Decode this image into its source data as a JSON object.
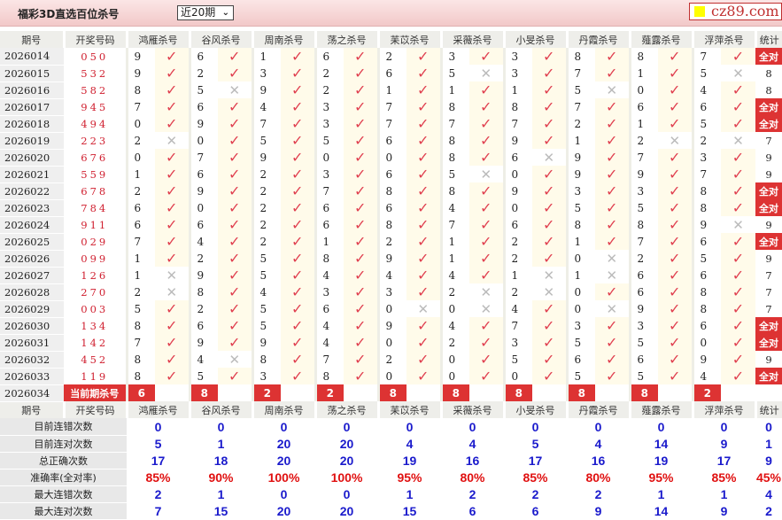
{
  "header": {
    "title": "福彩3D直选百位杀号",
    "period_select": "近20期",
    "logo": "cz89.com"
  },
  "columns": [
    "期号",
    "开奖号码",
    "鸿雁杀号",
    "谷风杀号",
    "周南杀号",
    "荡之杀号",
    "苿苡杀号",
    "采薇杀号",
    "小旻杀号",
    "丹霞杀号",
    "薤露杀号",
    "浮萍杀号",
    "统计"
  ],
  "rows": [
    {
      "issue": "2026014",
      "code": "050",
      "kills": [
        9,
        6,
        1,
        6,
        2,
        3,
        3,
        8,
        8,
        7
      ],
      "hits": "1111111111",
      "stat": "全对"
    },
    {
      "issue": "2026015",
      "code": "532",
      "kills": [
        9,
        2,
        3,
        2,
        6,
        5,
        3,
        7,
        1,
        5
      ],
      "hits": "1111101110",
      "stat": "8"
    },
    {
      "issue": "2026016",
      "code": "582",
      "kills": [
        8,
        5,
        9,
        2,
        1,
        1,
        1,
        5,
        0,
        4
      ],
      "hits": "1011111011",
      "stat": "8"
    },
    {
      "issue": "2026017",
      "code": "945",
      "kills": [
        7,
        6,
        4,
        3,
        7,
        8,
        8,
        7,
        6,
        6
      ],
      "hits": "1111111111",
      "stat": "全对"
    },
    {
      "issue": "2026018",
      "code": "494",
      "kills": [
        0,
        9,
        7,
        3,
        7,
        7,
        7,
        2,
        1,
        5
      ],
      "hits": "1111111111",
      "stat": "全对"
    },
    {
      "issue": "2026019",
      "code": "223",
      "kills": [
        2,
        0,
        5,
        5,
        6,
        8,
        9,
        1,
        2,
        2
      ],
      "hits": "0111111100",
      "stat": "7"
    },
    {
      "issue": "2026020",
      "code": "676",
      "kills": [
        0,
        7,
        9,
        0,
        0,
        8,
        6,
        9,
        7,
        3
      ],
      "hits": "1111110111",
      "stat": "9"
    },
    {
      "issue": "2026021",
      "code": "559",
      "kills": [
        1,
        6,
        2,
        3,
        6,
        5,
        0,
        9,
        9,
        7
      ],
      "hits": "1111101111",
      "stat": "9"
    },
    {
      "issue": "2026022",
      "code": "678",
      "kills": [
        2,
        9,
        2,
        7,
        8,
        8,
        9,
        3,
        3,
        8
      ],
      "hits": "1111111111",
      "stat": "全对"
    },
    {
      "issue": "2026023",
      "code": "784",
      "kills": [
        6,
        0,
        2,
        6,
        6,
        4,
        0,
        5,
        5,
        8
      ],
      "hits": "1111111111",
      "stat": "全对"
    },
    {
      "issue": "2026024",
      "code": "911",
      "kills": [
        6,
        6,
        2,
        6,
        8,
        7,
        6,
        8,
        8,
        9
      ],
      "hits": "1111111110",
      "stat": "9"
    },
    {
      "issue": "2026025",
      "code": "029",
      "kills": [
        7,
        4,
        2,
        1,
        2,
        1,
        2,
        1,
        7,
        6
      ],
      "hits": "1111111111",
      "stat": "全对"
    },
    {
      "issue": "2026026",
      "code": "099",
      "kills": [
        1,
        2,
        5,
        8,
        9,
        1,
        2,
        0,
        2,
        5
      ],
      "hits": "1111111011",
      "stat": "9"
    },
    {
      "issue": "2026027",
      "code": "126",
      "kills": [
        1,
        9,
        5,
        4,
        4,
        4,
        1,
        1,
        6,
        6
      ],
      "hits": "0111110011",
      "stat": "7"
    },
    {
      "issue": "2026028",
      "code": "270",
      "kills": [
        2,
        8,
        4,
        3,
        3,
        2,
        2,
        0,
        6,
        8
      ],
      "hits": "0111100111",
      "stat": "7"
    },
    {
      "issue": "2026029",
      "code": "003",
      "kills": [
        5,
        2,
        5,
        6,
        0,
        0,
        4,
        0,
        9,
        8
      ],
      "hits": "1111001011",
      "stat": "7"
    },
    {
      "issue": "2026030",
      "code": "134",
      "kills": [
        8,
        6,
        5,
        4,
        9,
        4,
        7,
        3,
        3,
        6
      ],
      "hits": "1111111111",
      "stat": "全对"
    },
    {
      "issue": "2026031",
      "code": "142",
      "kills": [
        7,
        9,
        9,
        4,
        0,
        2,
        3,
        5,
        5,
        0
      ],
      "hits": "1111111111",
      "stat": "全对"
    },
    {
      "issue": "2026032",
      "code": "452",
      "kills": [
        8,
        4,
        8,
        7,
        2,
        0,
        5,
        6,
        6,
        9
      ],
      "hits": "1011111111",
      "stat": "9"
    },
    {
      "issue": "2026033",
      "code": "119",
      "kills": [
        8,
        5,
        3,
        8,
        0,
        0,
        0,
        5,
        5,
        4
      ],
      "hits": "1111111111",
      "stat": "全对"
    }
  ],
  "current": {
    "issue": "2026034",
    "label": "当前期杀号",
    "kills": [
      6,
      8,
      2,
      2,
      8,
      8,
      8,
      8,
      8,
      2
    ]
  },
  "stats": [
    {
      "label": "目前连错次数",
      "values": [
        "0",
        "0",
        "0",
        "0",
        "0",
        "0",
        "0",
        "0",
        "0",
        "0",
        "0"
      ]
    },
    {
      "label": "目前连对次数",
      "values": [
        "5",
        "1",
        "20",
        "20",
        "4",
        "4",
        "5",
        "4",
        "14",
        "9",
        "1"
      ]
    },
    {
      "label": "总正确次数",
      "values": [
        "17",
        "18",
        "20",
        "20",
        "19",
        "16",
        "17",
        "16",
        "19",
        "17",
        "9"
      ]
    },
    {
      "label": "准确率(全对率)",
      "values": [
        "85%",
        "90%",
        "100%",
        "100%",
        "95%",
        "80%",
        "85%",
        "80%",
        "95%",
        "85%",
        "45%"
      ],
      "red": true
    },
    {
      "label": "最大连错次数",
      "values": [
        "2",
        "1",
        "0",
        "0",
        "1",
        "2",
        "2",
        "2",
        "1",
        "1",
        "4"
      ]
    },
    {
      "label": "最大连对次数",
      "values": [
        "7",
        "15",
        "20",
        "20",
        "15",
        "6",
        "6",
        "9",
        "14",
        "9",
        "2"
      ]
    }
  ],
  "colors": {
    "accent": "#dd3333",
    "check": "#e04050",
    "stat_value": "#1a1acc",
    "rate": "#e01010"
  }
}
